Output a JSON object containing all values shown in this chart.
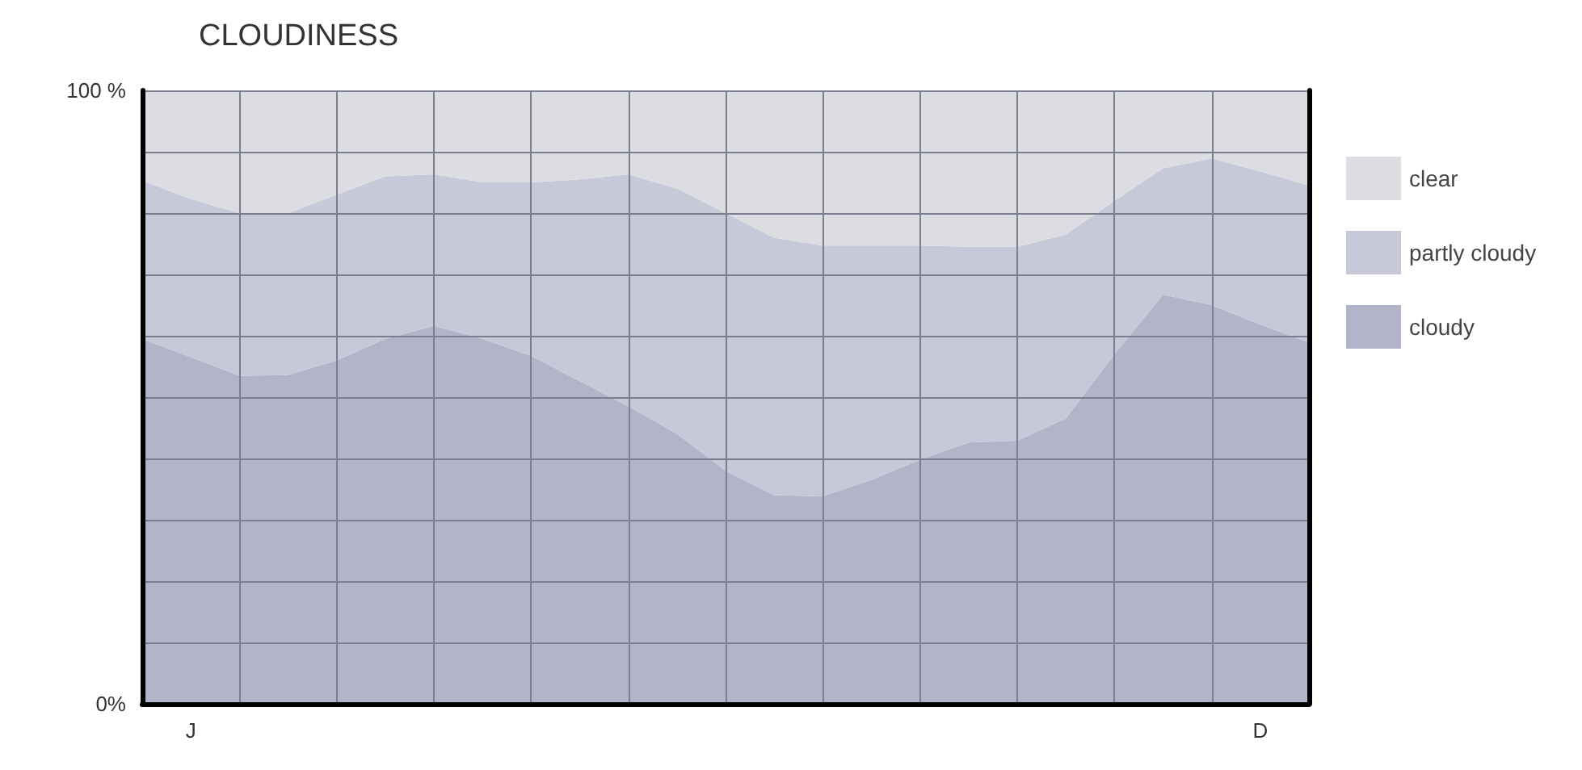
{
  "chart_data": {
    "type": "area",
    "title": "CLOUDINESS",
    "stacked": true,
    "grid": true,
    "legend": "right",
    "marker": "none",
    "categories": [
      null,
      "J",
      null,
      null,
      null,
      null,
      null,
      null,
      null,
      null,
      null,
      null,
      null,
      null,
      null,
      null,
      null,
      null,
      null,
      null,
      null,
      null,
      null,
      "D",
      null
    ],
    "ylim": [
      0,
      100
    ],
    "yticks": [
      {
        "value": 0,
        "label": "0%"
      },
      {
        "value": 10,
        "label": null
      },
      {
        "value": 20,
        "label": null
      },
      {
        "value": 30,
        "label": null
      },
      {
        "value": 40,
        "label": null
      },
      {
        "value": 50,
        "label": null
      },
      {
        "value": 60,
        "label": null
      },
      {
        "value": 70,
        "label": null
      },
      {
        "value": 80,
        "label": null
      },
      {
        "value": 90,
        "label": null
      },
      {
        "value": 100,
        "label": "100 %"
      }
    ],
    "series": [
      {
        "name": "cloudy",
        "color": "#b2b4ca",
        "values": [
          59.5,
          56.5,
          53.5,
          53.6,
          56,
          59.5,
          61.6,
          59.5,
          56.7,
          52.6,
          48.5,
          44,
          38,
          34,
          33.8,
          36.5,
          39.8,
          42.6,
          42.9,
          46.5,
          57,
          66.7,
          65,
          61.8,
          58.9
        ]
      },
      {
        "name": "partly cloudy",
        "color": "#c7c8d8",
        "values": [
          25.8,
          25.8,
          26.5,
          26.4,
          27,
          26.5,
          24.7,
          25.5,
          28.3,
          32.9,
          37.8,
          40,
          42,
          42,
          40.9,
          38.2,
          34.9,
          31.9,
          31.6,
          30,
          25,
          20.6,
          23.9,
          25,
          25.6
        ]
      },
      {
        "name": "clear",
        "color": "#dcdde3",
        "values": [
          14.7,
          17.7,
          20,
          20,
          17,
          14,
          13.7,
          15,
          15,
          14.5,
          13.7,
          16,
          20,
          24,
          25.3,
          25.3,
          25.3,
          25.5,
          25.5,
          23.5,
          18,
          12.7,
          11.1,
          13.2,
          15.5
        ]
      }
    ]
  }
}
